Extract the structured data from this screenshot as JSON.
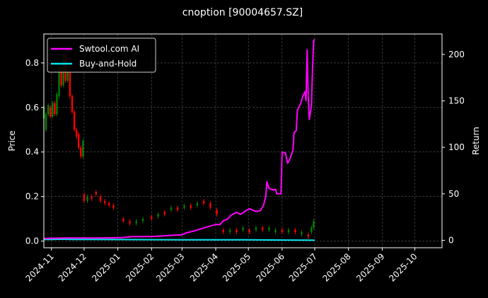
{
  "chart_data": {
    "type": "line",
    "title": "cnoption [90004657.SZ]",
    "ylabel_left": "Price",
    "ylabel_right": "Return",
    "x_ticks": [
      "2024-11",
      "2024-12",
      "2025-01",
      "2025-02",
      "2025-03",
      "2025-04",
      "2025-05",
      "2025-06",
      "2025-07",
      "2025-08",
      "2025-09",
      "2025-10"
    ],
    "xlim": [
      "2024-10-25",
      "2025-10-26"
    ],
    "ylim_left": [
      -0.03,
      0.93
    ],
    "ylim_right": [
      -8,
      222
    ],
    "y_ticks_left": [
      0.0,
      0.2,
      0.4,
      0.6,
      0.8
    ],
    "y_ticks_right": [
      0,
      50,
      100,
      150,
      200
    ],
    "grid": true,
    "legend_position": "top-left",
    "colors": {
      "background": "#000000",
      "strategy": "#ff00ff",
      "buyhold": "#00e5ee",
      "up": "#008000",
      "down": "#ff0000",
      "grid": "#555555"
    },
    "series": [
      {
        "name": "Swtool.com AI",
        "axis": "right",
        "points": [
          [
            "2024-10-25",
            2.0
          ],
          [
            "2024-11-15",
            2.5
          ],
          [
            "2024-12-15",
            2.5
          ],
          [
            "2025-01-05",
            3.0
          ],
          [
            "2025-01-15",
            4.0
          ],
          [
            "2025-02-01",
            4.0
          ],
          [
            "2025-02-15",
            5.0
          ],
          [
            "2025-03-01",
            6.0
          ],
          [
            "2025-03-05",
            8.0
          ],
          [
            "2025-03-12",
            10.0
          ],
          [
            "2025-03-20",
            13.0
          ],
          [
            "2025-04-01",
            17.0
          ],
          [
            "2025-04-05",
            17.0
          ],
          [
            "2025-04-08",
            21.0
          ],
          [
            "2025-04-12",
            23.0
          ],
          [
            "2025-04-15",
            27.0
          ],
          [
            "2025-04-20",
            30.0
          ],
          [
            "2025-04-24",
            28.0
          ],
          [
            "2025-04-29",
            32.0
          ],
          [
            "2025-05-02",
            34.0
          ],
          [
            "2025-05-08",
            31.0
          ],
          [
            "2025-05-12",
            32.0
          ],
          [
            "2025-05-15",
            38.0
          ],
          [
            "2025-05-17",
            47.0
          ],
          [
            "2025-05-18",
            63.0
          ],
          [
            "2025-05-20",
            56.0
          ],
          [
            "2025-05-24",
            54.0
          ],
          [
            "2025-05-26",
            55.0
          ],
          [
            "2025-05-27",
            50.0
          ],
          [
            "2025-05-31",
            50.0
          ],
          [
            "2025-06-01",
            95.0
          ],
          [
            "2025-06-04",
            94.0
          ],
          [
            "2025-06-06",
            83.0
          ],
          [
            "2025-06-08",
            87.0
          ],
          [
            "2025-06-11",
            97.0
          ],
          [
            "2025-06-12",
            116.0
          ],
          [
            "2025-06-14",
            118.0
          ],
          [
            "2025-06-15",
            140.0
          ],
          [
            "2025-06-18",
            147.0
          ],
          [
            "2025-06-20",
            155.0
          ],
          [
            "2025-06-22",
            160.0
          ],
          [
            "2025-06-23",
            150.0
          ],
          [
            "2025-06-24",
            205.0
          ],
          [
            "2025-06-25",
            155.0
          ],
          [
            "2025-06-26",
            130.0
          ],
          [
            "2025-06-28",
            145.0
          ],
          [
            "2025-06-29",
            185.0
          ],
          [
            "2025-06-30",
            215.0
          ],
          [
            "2025-07-01",
            216.0
          ]
        ]
      },
      {
        "name": "Buy-and-Hold",
        "axis": "right",
        "points": [
          [
            "2024-10-25",
            1.0
          ],
          [
            "2024-11-01",
            1.0
          ],
          [
            "2024-11-10",
            1.2
          ],
          [
            "2024-11-20",
            1.0
          ],
          [
            "2025-01-01",
            0.8
          ],
          [
            "2025-03-01",
            0.6
          ],
          [
            "2025-05-01",
            0.5
          ],
          [
            "2025-06-01",
            0.3
          ],
          [
            "2025-06-20",
            0.2
          ],
          [
            "2025-07-01",
            0.1
          ]
        ]
      }
    ],
    "candles": [
      [
        "2024-10-25",
        0.55,
        0.6
      ],
      [
        "2024-10-27",
        0.5,
        0.57
      ],
      [
        "2024-10-29",
        0.57,
        0.61
      ],
      [
        "2024-10-31",
        0.6,
        0.56
      ],
      [
        "2024-11-02",
        0.56,
        0.62
      ],
      [
        "2024-11-04",
        0.62,
        0.57
      ],
      [
        "2024-11-06",
        0.57,
        0.66
      ],
      [
        "2024-11-08",
        0.65,
        0.78
      ],
      [
        "2024-11-10",
        0.78,
        0.7
      ],
      [
        "2024-11-12",
        0.7,
        0.84
      ],
      [
        "2024-11-14",
        0.84,
        0.72
      ],
      [
        "2024-11-16",
        0.72,
        0.76
      ],
      [
        "2024-11-18",
        0.76,
        0.65
      ],
      [
        "2024-11-20",
        0.65,
        0.58
      ],
      [
        "2024-11-22",
        0.58,
        0.5
      ],
      [
        "2024-11-24",
        0.5,
        0.47
      ],
      [
        "2024-11-26",
        0.48,
        0.42
      ],
      [
        "2024-11-28",
        0.42,
        0.38
      ],
      [
        "2024-11-30",
        0.38,
        0.45
      ],
      [
        "2024-12-01",
        0.21,
        0.18
      ],
      [
        "2024-12-04",
        0.18,
        0.2
      ],
      [
        "2024-12-08",
        0.2,
        0.19
      ],
      [
        "2024-12-12",
        0.22,
        0.21
      ],
      [
        "2024-12-16",
        0.2,
        0.18
      ],
      [
        "2024-12-20",
        0.18,
        0.17
      ],
      [
        "2024-12-24",
        0.17,
        0.16
      ],
      [
        "2024-12-28",
        0.16,
        0.15
      ],
      [
        "2025-01-06",
        0.1,
        0.09
      ],
      [
        "2025-01-12",
        0.09,
        0.08
      ],
      [
        "2025-01-18",
        0.08,
        0.09
      ],
      [
        "2025-01-24",
        0.09,
        0.1
      ],
      [
        "2025-02-01",
        0.11,
        0.1
      ],
      [
        "2025-02-07",
        0.11,
        0.12
      ],
      [
        "2025-02-13",
        0.13,
        0.12
      ],
      [
        "2025-02-19",
        0.14,
        0.15
      ],
      [
        "2025-02-25",
        0.15,
        0.14
      ],
      [
        "2025-03-03",
        0.15,
        0.16
      ],
      [
        "2025-03-09",
        0.16,
        0.15
      ],
      [
        "2025-03-15",
        0.16,
        0.17
      ],
      [
        "2025-03-21",
        0.18,
        0.17
      ],
      [
        "2025-03-27",
        0.17,
        0.15
      ],
      [
        "2025-04-02",
        0.14,
        0.12
      ],
      [
        "2025-04-08",
        0.05,
        0.04
      ],
      [
        "2025-04-14",
        0.04,
        0.05
      ],
      [
        "2025-04-20",
        0.05,
        0.04
      ],
      [
        "2025-04-26",
        0.05,
        0.06
      ],
      [
        "2025-05-02",
        0.05,
        0.04
      ],
      [
        "2025-05-08",
        0.05,
        0.06
      ],
      [
        "2025-05-14",
        0.06,
        0.05
      ],
      [
        "2025-05-20",
        0.05,
        0.06
      ],
      [
        "2025-05-26",
        0.04,
        0.05
      ],
      [
        "2025-06-01",
        0.05,
        0.04
      ],
      [
        "2025-06-07",
        0.04,
        0.05
      ],
      [
        "2025-06-13",
        0.05,
        0.04
      ],
      [
        "2025-06-19",
        0.03,
        0.04
      ],
      [
        "2025-06-25",
        0.03,
        0.02
      ],
      [
        "2025-06-28",
        0.04,
        0.06
      ],
      [
        "2025-06-30",
        0.06,
        0.09
      ]
    ]
  }
}
